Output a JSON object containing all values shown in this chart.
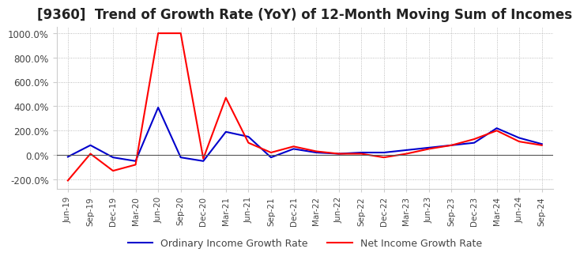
{
  "title": "[9360]  Trend of Growth Rate (YoY) of 12-Month Moving Sum of Incomes",
  "title_fontsize": 12,
  "ylim": [
    -280,
    1050
  ],
  "yticks": [
    -200,
    0,
    200,
    400,
    600,
    800,
    1000
  ],
  "background_color": "#ffffff",
  "plot_background_color": "#ffffff",
  "grid_color": "#aaaaaa",
  "ordinary_color": "#0000cc",
  "net_color": "#ff0000",
  "legend_labels": [
    "Ordinary Income Growth Rate",
    "Net Income Growth Rate"
  ],
  "x_labels": [
    "Jun-19",
    "Sep-19",
    "Dec-19",
    "Mar-20",
    "Jun-20",
    "Sep-20",
    "Dec-20",
    "Mar-21",
    "Jun-21",
    "Sep-21",
    "Dec-21",
    "Mar-22",
    "Jun-22",
    "Sep-22",
    "Dec-22",
    "Mar-23",
    "Jun-23",
    "Sep-23",
    "Dec-23",
    "Mar-24",
    "Jun-24",
    "Sep-24"
  ],
  "ordinary_income_growth": [
    -15,
    80,
    -20,
    -50,
    390,
    -20,
    -50,
    190,
    150,
    -20,
    50,
    20,
    10,
    20,
    20,
    40,
    60,
    80,
    100,
    220,
    140,
    90
  ],
  "net_income_growth": [
    -210,
    10,
    -130,
    -80,
    1000,
    1000,
    -30,
    470,
    100,
    20,
    70,
    30,
    10,
    10,
    -20,
    10,
    50,
    80,
    130,
    200,
    110,
    80
  ]
}
